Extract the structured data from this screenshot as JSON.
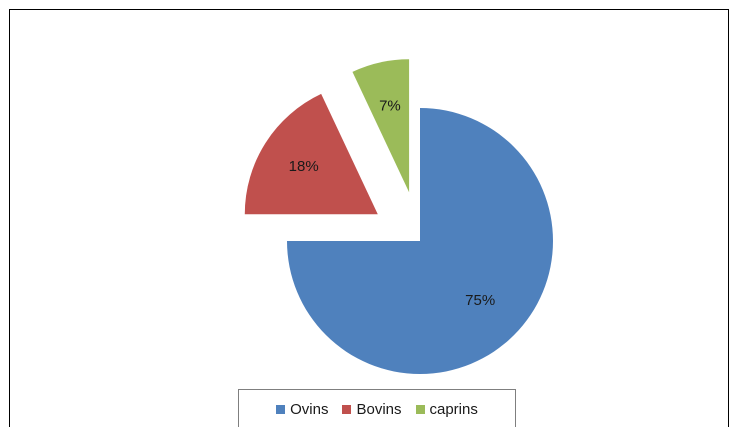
{
  "chart_data": {
    "type": "pie",
    "title": "",
    "slices": [
      {
        "label": "Ovins",
        "value": 75,
        "display": "75%",
        "color": "#4f81bd",
        "exploded": false
      },
      {
        "label": "Bovins",
        "value": 18,
        "display": "18%",
        "color": "#c0504d",
        "exploded": true
      },
      {
        "label": "caprins",
        "value": 7,
        "display": "7%",
        "color": "#9bbb59",
        "exploded": true
      }
    ],
    "legend": {
      "placement": "bottom",
      "entries": [
        "Ovins",
        "Bovins",
        "caprins"
      ]
    }
  }
}
